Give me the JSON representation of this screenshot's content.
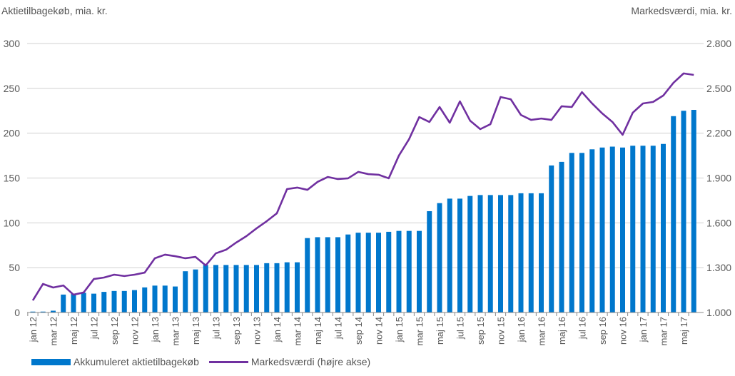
{
  "chart_data": {
    "type": "bar+line",
    "left_axis_title": "Aktietilbagekøb, mia. kr.",
    "right_axis_title": "Markedsværdi, mia. kr.",
    "ylim_left": [
      0,
      300
    ],
    "yticks_left": [
      "0",
      "50",
      "100",
      "150",
      "200",
      "250",
      "300"
    ],
    "ylim_right": [
      1000,
      2800
    ],
    "yticks_right": [
      "1.000",
      "1.300",
      "1.600",
      "1.900",
      "2.200",
      "2.500",
      "2.800"
    ],
    "grid": true,
    "legend_position": "bottom",
    "categories": [
      "jan 12",
      "feb 12",
      "mar 12",
      "apr 12",
      "maj 12",
      "jun 12",
      "jul 12",
      "aug 12",
      "sep 12",
      "okt 12",
      "nov 12",
      "dec 12",
      "jan 13",
      "feb 13",
      "mar 13",
      "apr 13",
      "maj 13",
      "jun 13",
      "jul 13",
      "aug 13",
      "sep 13",
      "okt 13",
      "nov 13",
      "dec 13",
      "jan 14",
      "feb 14",
      "mar 14",
      "apr 14",
      "maj 14",
      "jun 14",
      "jul 14",
      "aug 14",
      "sep 14",
      "okt 14",
      "nov 14",
      "dec 14",
      "jan 15",
      "feb 15",
      "mar 15",
      "apr 15",
      "maj 15",
      "jun 15",
      "jul 15",
      "aug 15",
      "sep 15",
      "okt 15",
      "nov 15",
      "dec 15",
      "jan 16",
      "feb 16",
      "mar 16",
      "apr 16",
      "maj 16",
      "jun 16",
      "jul 16",
      "aug 16",
      "sep 16",
      "okt 16",
      "nov 16",
      "dec 16",
      "jan 17",
      "feb 17",
      "mar 17",
      "apr 17",
      "maj 17",
      "jun 17"
    ],
    "series": [
      {
        "name": "Akkumuleret aktietilbagekøb",
        "type": "bar",
        "axis": "left",
        "color": "#0077cc",
        "values": [
          1,
          1,
          2,
          20,
          21,
          22,
          21,
          23,
          24,
          24,
          25,
          28,
          30,
          30,
          29,
          46,
          48,
          53,
          53,
          53,
          53,
          53,
          53,
          55,
          55,
          56,
          56,
          83,
          84,
          84,
          84,
          87,
          89,
          89,
          89,
          90,
          91,
          91,
          91,
          113,
          122,
          127,
          127,
          130,
          131,
          131,
          131,
          131,
          133,
          133,
          133,
          164,
          168,
          178,
          178,
          182,
          184,
          185,
          184,
          186,
          186,
          186,
          188,
          219,
          225,
          226
        ]
      },
      {
        "name": "Markedsværdi (højre akse)",
        "type": "line",
        "axis": "right",
        "color": "#7030a0",
        "values": [
          1081,
          1191,
          1167,
          1181,
          1119,
          1134,
          1224,
          1234,
          1253,
          1244,
          1253,
          1267,
          1363,
          1387,
          1377,
          1363,
          1372,
          1315,
          1396,
          1420,
          1468,
          1511,
          1563,
          1611,
          1664,
          1826,
          1836,
          1821,
          1874,
          1907,
          1893,
          1898,
          1941,
          1926,
          1922,
          1898,
          2050,
          2160,
          2308,
          2275,
          2375,
          2270,
          2413,
          2284,
          2227,
          2260,
          2442,
          2427,
          2322,
          2289,
          2298,
          2289,
          2380,
          2375,
          2475,
          2399,
          2332,
          2275,
          2189,
          2337,
          2399,
          2409,
          2452,
          2537,
          2600,
          2590
        ]
      }
    ]
  }
}
